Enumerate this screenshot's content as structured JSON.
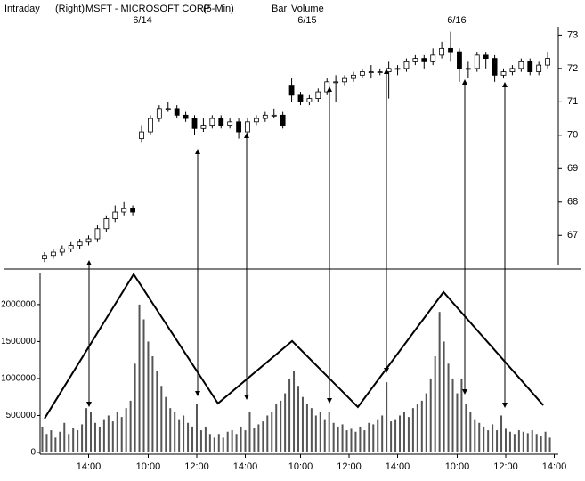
{
  "chart_data": [
    {
      "type": "candlestick",
      "header": [
        "Intraday",
        "(Right)",
        "MSFT - MICROSOFT CORP",
        "(5-Min)",
        "Bar",
        "Volume"
      ],
      "date_ticks": [
        {
          "value": 23.2,
          "label": "6/14"
        },
        {
          "value": 60.5,
          "label": "6/15"
        },
        {
          "value": 94.4,
          "label": "6/16"
        }
      ],
      "xlim": [
        0,
        117
      ],
      "ylim": [
        66.1,
        73.25
      ],
      "yticks": [
        67,
        68,
        69,
        70,
        71,
        72,
        73
      ],
      "open": [
        66.3,
        66.4,
        66.5,
        66.6,
        66.7,
        66.8,
        66.9,
        67.2,
        67.5,
        67.7,
        67.8,
        69.9,
        70.1,
        70.5,
        70.8,
        70.8,
        70.6,
        70.5,
        70.2,
        70.3,
        70.5,
        70.3,
        70.4,
        70.1,
        70.4,
        70.5,
        70.6,
        70.6,
        71.5,
        71.2,
        71.0,
        71.1,
        71.3,
        71.6,
        71.6,
        71.7,
        71.8,
        71.9,
        71.9,
        71.9,
        72.0,
        72.0,
        72.2,
        72.3,
        72.2,
        72.4,
        72.6,
        72.5,
        72.0,
        72.0,
        72.4,
        72.3,
        71.8,
        71.9,
        72.0,
        72.2,
        71.9,
        72.1
      ],
      "high": [
        66.5,
        66.6,
        66.7,
        66.8,
        66.9,
        67.0,
        67.3,
        67.6,
        67.9,
        68.0,
        67.9,
        70.3,
        70.6,
        70.9,
        71.0,
        70.9,
        70.7,
        70.6,
        70.5,
        70.6,
        70.6,
        70.5,
        70.5,
        70.5,
        70.6,
        70.7,
        70.8,
        70.7,
        71.7,
        71.3,
        71.2,
        71.4,
        71.7,
        71.8,
        71.8,
        71.9,
        72.0,
        72.1,
        72.0,
        72.2,
        72.1,
        72.3,
        72.4,
        72.4,
        72.6,
        72.8,
        73.1,
        72.6,
        72.2,
        72.5,
        72.5,
        72.4,
        72.0,
        72.1,
        72.3,
        72.3,
        72.2,
        72.5
      ],
      "low": [
        66.2,
        66.3,
        66.4,
        66.5,
        66.6,
        66.7,
        66.8,
        67.1,
        67.4,
        67.6,
        67.6,
        69.8,
        70.0,
        70.4,
        70.7,
        70.5,
        70.4,
        70.0,
        70.1,
        70.2,
        70.2,
        70.2,
        69.9,
        70.0,
        70.3,
        70.4,
        70.5,
        70.2,
        71.0,
        70.9,
        70.9,
        71.0,
        71.2,
        71.0,
        71.5,
        71.6,
        71.7,
        71.7,
        71.8,
        71.1,
        71.8,
        71.9,
        72.1,
        72.0,
        72.1,
        72.3,
        72.2,
        71.6,
        71.7,
        71.9,
        72.0,
        71.6,
        71.7,
        71.8,
        71.9,
        71.8,
        71.8,
        72.0
      ],
      "close": [
        66.4,
        66.5,
        66.6,
        66.7,
        66.8,
        66.9,
        67.2,
        67.5,
        67.7,
        67.8,
        67.7,
        70.1,
        70.5,
        70.8,
        70.8,
        70.6,
        70.5,
        70.2,
        70.3,
        70.5,
        70.3,
        70.4,
        70.1,
        70.4,
        70.5,
        70.6,
        70.6,
        70.3,
        71.2,
        71.0,
        71.1,
        71.3,
        71.6,
        71.6,
        71.7,
        71.8,
        71.9,
        71.9,
        71.9,
        72.0,
        72.0,
        72.2,
        72.3,
        72.2,
        72.4,
        72.6,
        72.5,
        72.0,
        72.0,
        72.4,
        72.3,
        71.8,
        71.9,
        72.0,
        72.2,
        71.9,
        72.1,
        72.3
      ]
    },
    {
      "type": "bar",
      "xlim": [
        0,
        117
      ],
      "ylim": [
        0,
        2420000
      ],
      "yticks": [
        0,
        500000,
        1000000,
        1500000,
        2000000
      ],
      "xticks": [
        {
          "value": 11,
          "label": "14:00"
        },
        {
          "value": 24.5,
          "label": "10:00"
        },
        {
          "value": 35.5,
          "label": "12:00"
        },
        {
          "value": 46.5,
          "label": "14:00"
        },
        {
          "value": 59,
          "label": "10:00"
        },
        {
          "value": 70,
          "label": "12:00"
        },
        {
          "value": 81,
          "label": "14:00"
        },
        {
          "value": 94.5,
          "label": "10:00"
        },
        {
          "value": 105.5,
          "label": "12:00"
        },
        {
          "value": 116.5,
          "label": "14:00"
        }
      ],
      "color": "#555555",
      "values": [
        350000,
        250000,
        300000,
        200000,
        280000,
        400000,
        250000,
        330000,
        300000,
        380000,
        600000,
        550000,
        400000,
        350000,
        450000,
        500000,
        420000,
        550000,
        480000,
        600000,
        700000,
        1200000,
        2000000,
        1800000,
        1500000,
        1300000,
        1100000,
        900000,
        750000,
        600000,
        550000,
        450000,
        500000,
        400000,
        350000,
        650000,
        300000,
        350000,
        250000,
        200000,
        250000,
        200000,
        280000,
        300000,
        250000,
        350000,
        300000,
        550000,
        330000,
        380000,
        420000,
        500000,
        550000,
        650000,
        700000,
        800000,
        1000000,
        1100000,
        900000,
        750000,
        650000,
        600000,
        500000,
        550000,
        450000,
        550000,
        400000,
        350000,
        380000,
        300000,
        320000,
        280000,
        350000,
        300000,
        400000,
        380000,
        450000,
        500000,
        950000,
        420000,
        450000,
        500000,
        550000,
        480000,
        600000,
        650000,
        700000,
        800000,
        1000000,
        1300000,
        1900000,
        1500000,
        1200000,
        1000000,
        800000,
        1000000,
        650000,
        550000,
        450000,
        400000,
        350000,
        300000,
        380000,
        300000,
        500000,
        320000,
        280000,
        250000,
        300000,
        280000,
        260000,
        300000,
        250000,
        220000,
        280000,
        200000
      ],
      "zigzag": {
        "x": [
          1,
          21.2,
          40.3,
          57.1,
          72,
          91.4,
          114
        ],
        "values": [
          458000,
          2410000,
          663000,
          1506000,
          614000,
          2169000,
          639000
        ]
      }
    }
  ]
}
